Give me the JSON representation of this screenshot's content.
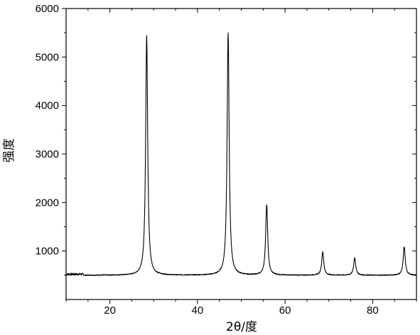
{
  "chart_data": {
    "type": "line",
    "title": "",
    "xlabel": "2θ/度",
    "ylabel": "强度",
    "xlim": [
      10,
      90
    ],
    "ylim": [
      0,
      6000
    ],
    "x_ticks": [
      20,
      40,
      60,
      80
    ],
    "y_ticks": [
      1000,
      2000,
      3000,
      4000,
      5000,
      6000
    ],
    "x_tick_labels": [
      "20",
      "40",
      "60",
      "80"
    ],
    "y_tick_labels": [
      "1000",
      "2000",
      "3000",
      "4000",
      "5000",
      "6000"
    ],
    "grid": false,
    "legend": "none",
    "line_color": "#000000",
    "baseline": 500,
    "peaks": [
      {
        "x": 28.4,
        "y": 5450
      },
      {
        "x": 47.0,
        "y": 5500
      },
      {
        "x": 55.8,
        "y": 1950
      },
      {
        "x": 68.6,
        "y": 980
      },
      {
        "x": 75.9,
        "y": 860
      },
      {
        "x": 87.2,
        "y": 1090
      }
    ],
    "series": [
      {
        "x": [
          10,
          12,
          15,
          20,
          25,
          27,
          27.8,
          28.4,
          29.0,
          30,
          35,
          40,
          45,
          46.4,
          47.0,
          47.6,
          49,
          52,
          54.8,
          55.8,
          56.6,
          58,
          62,
          67.8,
          68.6,
          69.4,
          72,
          75.2,
          75.9,
          76.6,
          80,
          86.4,
          87.2,
          88.0,
          90
        ],
        "y": [
          480,
          540,
          510,
          500,
          500,
          540,
          1500,
          5450,
          1300,
          550,
          505,
          505,
          510,
          1200,
          5500,
          1100,
          540,
          510,
          700,
          1950,
          700,
          520,
          505,
          600,
          980,
          600,
          510,
          560,
          860,
          560,
          505,
          650,
          1090,
          650,
          540
        ]
      }
    ]
  }
}
